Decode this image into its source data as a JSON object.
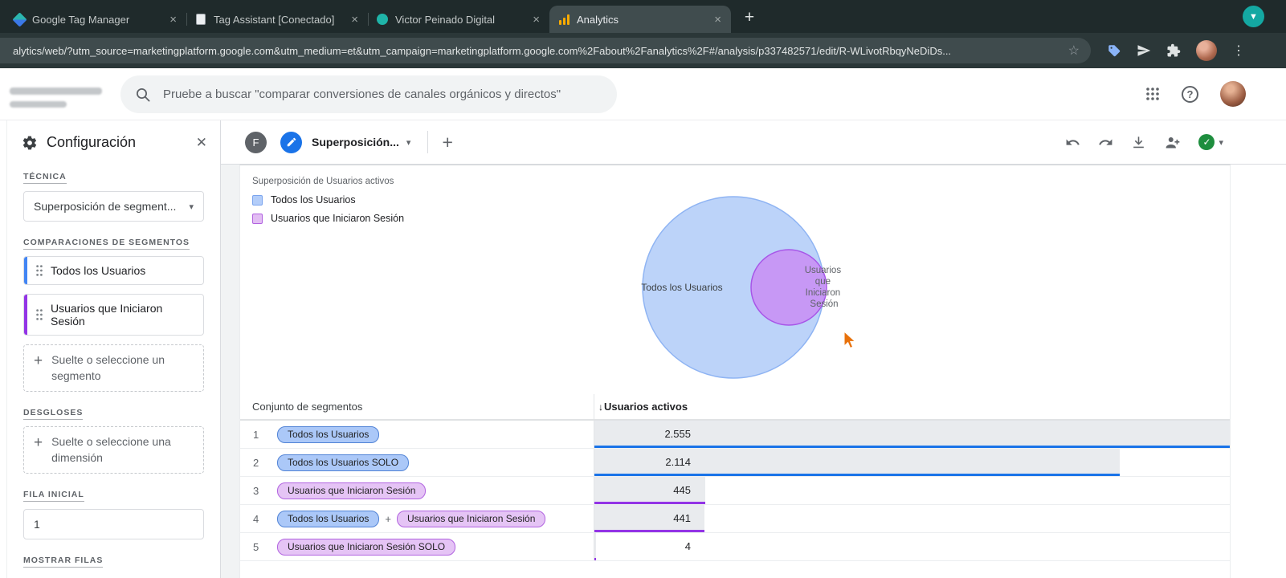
{
  "colors": {
    "blue": "#1a73e8",
    "purple": "#9334e6",
    "segment_blue": "#4285f4",
    "segment_purple": "#9334e6",
    "chip_blue_bg": "#abc8f8",
    "chip_purple_bg": "#e5c4f5",
    "check_green": "#1e8e3e",
    "tab_teal": "#14a8a2",
    "analytics_orange": "#f9ab00",
    "cursor_orange": "#e8710a"
  },
  "browser": {
    "tabs": [
      {
        "title": "Google Tag Manager"
      },
      {
        "title": "Tag Assistant [Conectado]"
      },
      {
        "title": "Victor Peinado Digital"
      },
      {
        "title": "Analytics"
      }
    ],
    "url": "alytics/web/?utm_source=marketingplatform.google.com&utm_medium=et&utm_campaign=marketingplatform.google.com%2Fabout%2Fanalytics%2F#/analysis/p337482571/edit/R-WLivotRbqyNeDiDs..."
  },
  "ga_header": {
    "search_placeholder": "Pruebe a buscar \"comparar conversiones de canales orgánicos y directos\""
  },
  "panel": {
    "title": "Configuración",
    "technique_label": "TÉCNICA",
    "technique_value": "Superposición de segment...",
    "segment_comparisons_label": "COMPARACIONES DE SEGMENTOS",
    "segments": [
      {
        "label": "Todos los Usuarios",
        "color": "blue"
      },
      {
        "label": "Usuarios que Iniciaron Sesión",
        "color": "purple"
      }
    ],
    "segment_drop_text": "Suelte o seleccione un segmento",
    "breakdowns_label": "DESGLOSES",
    "dimension_drop_text": "Suelte o seleccione una dimensión",
    "start_row_label": "FILA INICIAL",
    "start_row_value": "1",
    "show_rows_label": "MOSTRAR FILAS"
  },
  "canvas": {
    "toolbar": {
      "avatar_initial": "F",
      "tab_title": "Superposición..."
    },
    "chart_title": "Superposición de Usuarios activos",
    "legend": [
      {
        "label": "Todos los Usuarios",
        "color": "blue"
      },
      {
        "label": "Usuarios que Iniciaron Sesión",
        "color": "purple"
      }
    ],
    "venn": {
      "big_label": "Todos los Usuarios",
      "small_label_lines": [
        "Usuarios",
        "que",
        "Iniciaron",
        "Sesión"
      ]
    },
    "table": {
      "header_segments": "Conjunto de segmentos",
      "header_metric": "Usuarios activos",
      "rows": [
        {
          "index": "1",
          "chips": [
            {
              "label": "Todos los Usuarios",
              "color": "blue"
            }
          ],
          "value": "2.555",
          "bar_pct": 100,
          "bar_color": "blue"
        },
        {
          "index": "2",
          "chips": [
            {
              "label": "Todos los Usuarios SOLO",
              "color": "blue"
            }
          ],
          "value": "2.114",
          "bar_pct": 82.7,
          "bar_color": "blue"
        },
        {
          "index": "3",
          "chips": [
            {
              "label": "Usuarios que Iniciaron Sesión",
              "color": "purple"
            }
          ],
          "value": "445",
          "bar_pct": 17.4,
          "bar_color": "purple"
        },
        {
          "index": "4",
          "chips": [
            {
              "label": "Todos los Usuarios",
              "color": "blue"
            },
            {
              "label": "Usuarios que Iniciaron Sesión",
              "color": "purple"
            }
          ],
          "value": "441",
          "bar_pct": 17.3,
          "bar_color": "purple"
        },
        {
          "index": "5",
          "chips": [
            {
              "label": "Usuarios que Iniciaron Sesión SOLO",
              "color": "purple"
            }
          ],
          "value": "4",
          "bar_pct": 0.2,
          "bar_color": "purple"
        }
      ]
    }
  },
  "chart_data": {
    "type": "venn",
    "title": "Superposición de Usuarios activos",
    "metric": "Usuarios activos",
    "sets": [
      {
        "label": "Todos los Usuarios",
        "value": 2555,
        "solo": 2114
      },
      {
        "label": "Usuarios que Iniciaron Sesión",
        "value": 445,
        "solo": 4
      }
    ],
    "overlap": 441
  }
}
